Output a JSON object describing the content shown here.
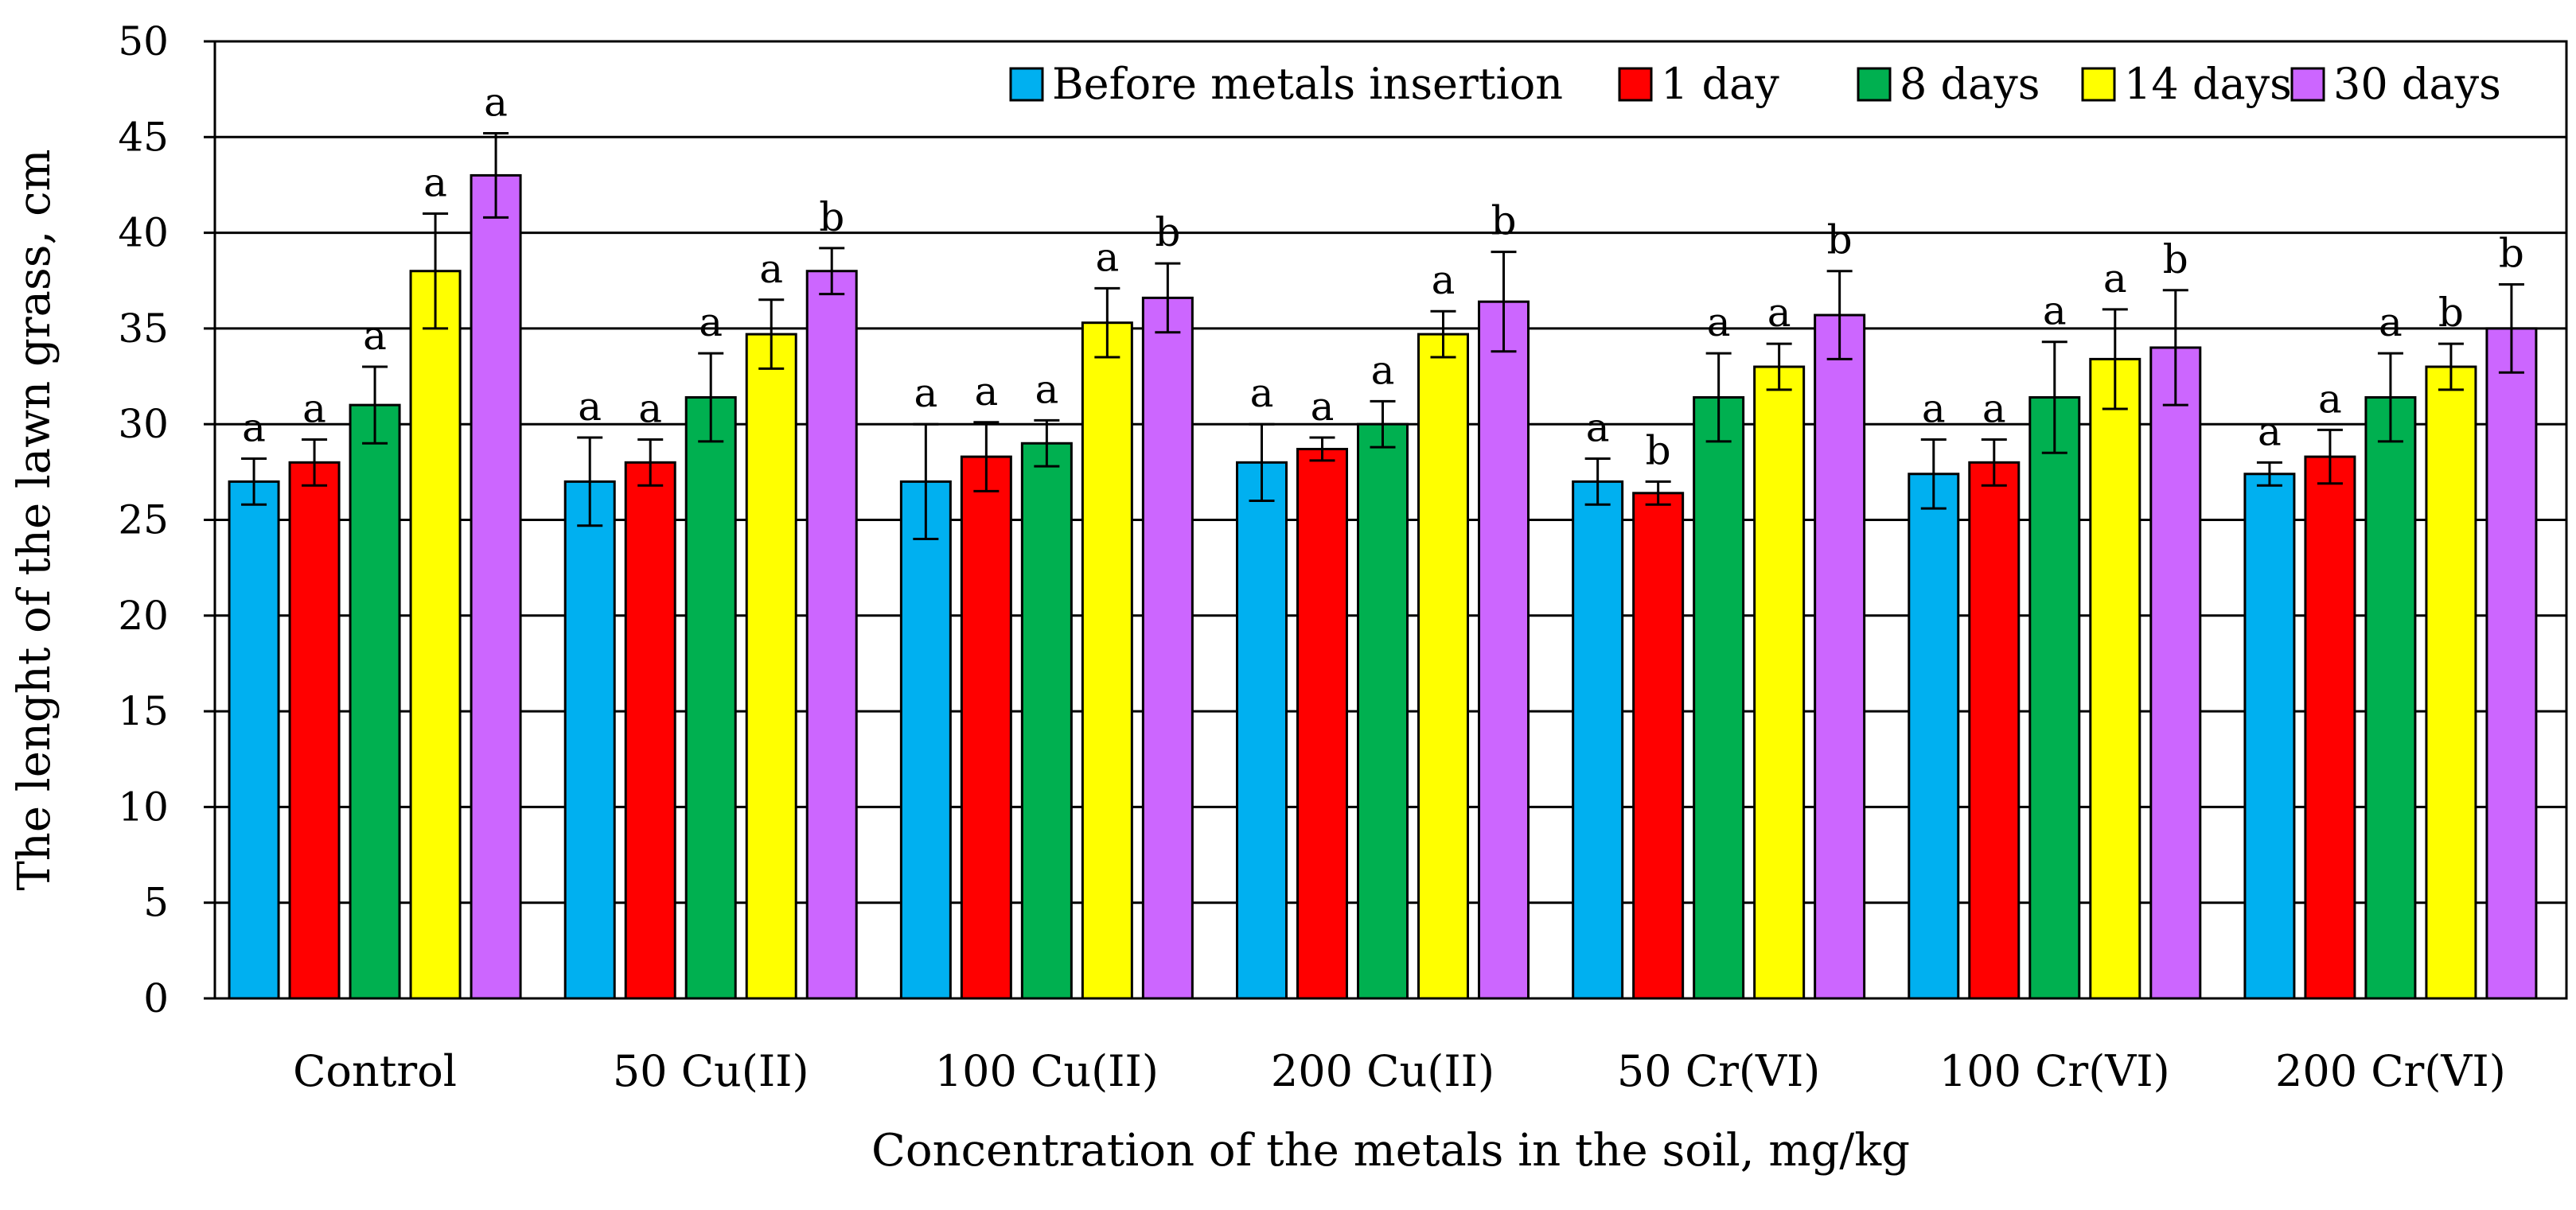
{
  "chart_data": {
    "type": "bar",
    "title": "",
    "xlabel": "Concentration of the metals in the soil, mg/kg",
    "ylabel": "The lenght of the lawn grass, cm",
    "ylim": [
      0,
      50
    ],
    "yticks": [
      0,
      5,
      10,
      15,
      20,
      25,
      30,
      35,
      40,
      45,
      50
    ],
    "grid": true,
    "legend_position": "top-right",
    "categories": [
      "Control",
      "50  Cu(II)",
      "100 Cu(II)",
      "200 Cu(II)",
      "50 Cr(VI)",
      "100 Cr(VI)",
      "200 Cr(VI)"
    ],
    "series": [
      {
        "name": "Before metals insertion",
        "color": "#00b0f0",
        "values": [
          27.0,
          27.0,
          27.0,
          28.0,
          27.0,
          27.4,
          27.4
        ],
        "errors": [
          1.2,
          2.3,
          3.0,
          2.0,
          1.2,
          1.8,
          0.6
        ],
        "letters": [
          "a",
          "a",
          "a",
          "a",
          "a",
          "a",
          "a"
        ]
      },
      {
        "name": "1 day",
        "color": "#ff0000",
        "values": [
          28.0,
          28.0,
          28.3,
          28.7,
          26.4,
          28.0,
          28.3
        ],
        "errors": [
          1.2,
          1.2,
          1.8,
          0.6,
          0.6,
          1.2,
          1.4
        ],
        "letters": [
          "a",
          "a",
          "a",
          "a",
          "b",
          "a",
          "a"
        ]
      },
      {
        "name": "8 days",
        "color": "#00b050",
        "values": [
          31.0,
          31.4,
          29.0,
          30.0,
          31.4,
          31.4,
          31.4
        ],
        "errors": [
          2.0,
          2.3,
          1.2,
          1.2,
          2.3,
          2.9,
          2.3
        ],
        "letters": [
          "a",
          "a",
          "a",
          "a",
          "a",
          "a",
          "a"
        ]
      },
      {
        "name": "14 days",
        "color": "#ffff00",
        "values": [
          38.0,
          34.7,
          35.3,
          34.7,
          33.0,
          33.4,
          33.0
        ],
        "errors": [
          3.0,
          1.8,
          1.8,
          1.2,
          1.2,
          2.6,
          1.2
        ],
        "letters": [
          "a",
          "a",
          "a",
          "a",
          "a",
          "a",
          "b"
        ]
      },
      {
        "name": "30 days",
        "color": "#cc66ff",
        "values": [
          43.0,
          38.0,
          36.6,
          36.4,
          35.7,
          34.0,
          35.0
        ],
        "errors": [
          2.2,
          1.2,
          1.8,
          2.6,
          2.3,
          3.0,
          2.3
        ],
        "letters": [
          "a",
          "b",
          "b",
          "b",
          "b",
          "b",
          "b"
        ]
      }
    ]
  }
}
